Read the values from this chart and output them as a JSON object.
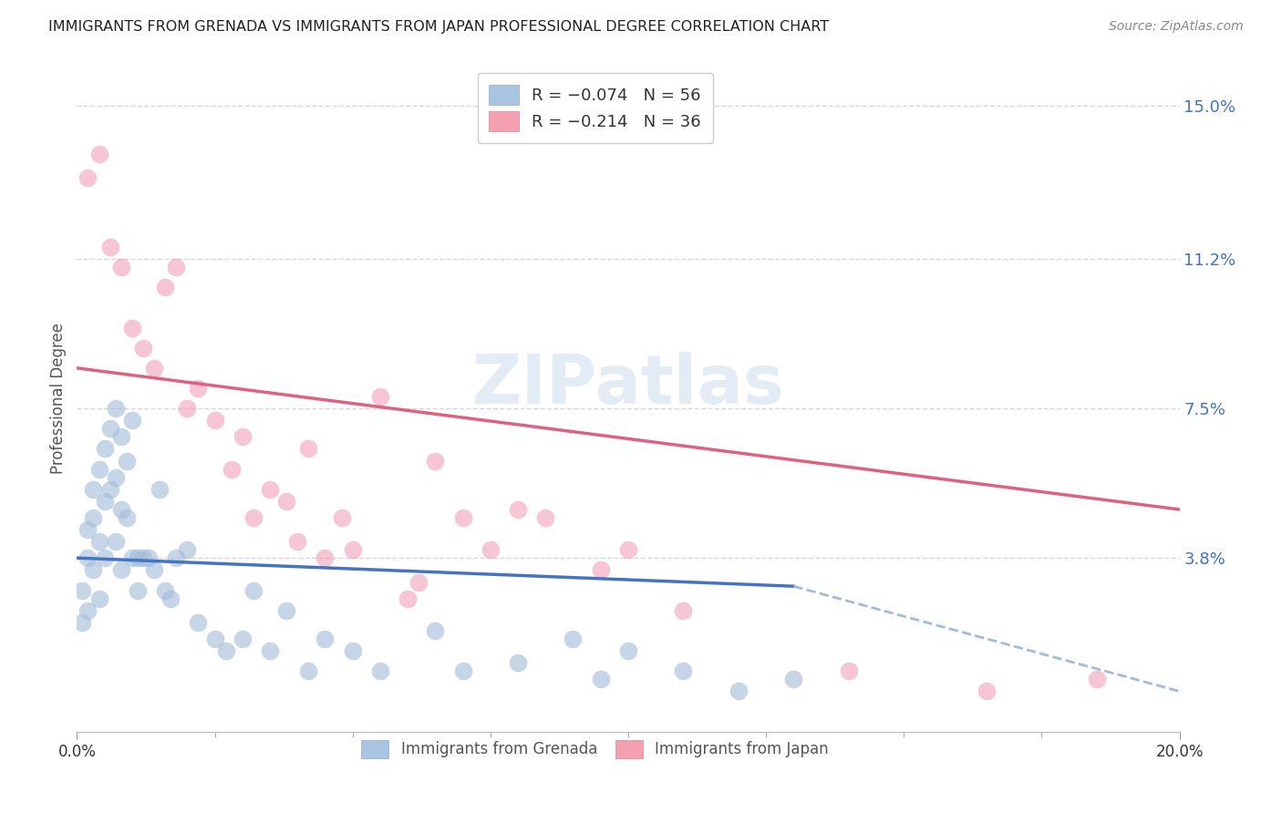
{
  "title": "IMMIGRANTS FROM GRENADA VS IMMIGRANTS FROM JAPAN PROFESSIONAL DEGREE CORRELATION CHART",
  "source": "Source: ZipAtlas.com",
  "ylabel": "Professional Degree",
  "watermark": "ZIPatlas",
  "y_tick_labels": [
    "15.0%",
    "11.2%",
    "7.5%",
    "3.8%"
  ],
  "y_tick_vals": [
    0.15,
    0.112,
    0.075,
    0.038
  ],
  "xlim": [
    0.0,
    0.2
  ],
  "ylim": [
    -0.005,
    0.16
  ],
  "legend_color1": "#a8c4e0",
  "legend_color2": "#f4a0b0",
  "dot_color_grenada": "#a0bcd8",
  "dot_color_japan": "#f0a0b8",
  "line_color_grenada": "#4472c4",
  "line_color_grenada_dash": "#a0bcd8",
  "line_color_japan": "#e06080",
  "grid_color": "#cccccc",
  "background_color": "#ffffff",
  "scatter_grenada_x": [
    0.001,
    0.001,
    0.002,
    0.002,
    0.002,
    0.003,
    0.003,
    0.003,
    0.004,
    0.004,
    0.004,
    0.005,
    0.005,
    0.005,
    0.006,
    0.006,
    0.007,
    0.007,
    0.007,
    0.008,
    0.008,
    0.008,
    0.009,
    0.009,
    0.01,
    0.01,
    0.011,
    0.011,
    0.012,
    0.013,
    0.014,
    0.015,
    0.016,
    0.017,
    0.018,
    0.02,
    0.022,
    0.025,
    0.027,
    0.03,
    0.032,
    0.035,
    0.038,
    0.042,
    0.045,
    0.05,
    0.055,
    0.065,
    0.07,
    0.08,
    0.09,
    0.095,
    0.1,
    0.11,
    0.12,
    0.13
  ],
  "scatter_grenada_y": [
    0.03,
    0.022,
    0.045,
    0.038,
    0.025,
    0.055,
    0.048,
    0.035,
    0.06,
    0.042,
    0.028,
    0.065,
    0.052,
    0.038,
    0.07,
    0.055,
    0.075,
    0.058,
    0.042,
    0.068,
    0.05,
    0.035,
    0.062,
    0.048,
    0.072,
    0.038,
    0.038,
    0.03,
    0.038,
    0.038,
    0.035,
    0.055,
    0.03,
    0.028,
    0.038,
    0.04,
    0.022,
    0.018,
    0.015,
    0.018,
    0.03,
    0.015,
    0.025,
    0.01,
    0.018,
    0.015,
    0.01,
    0.02,
    0.01,
    0.012,
    0.018,
    0.008,
    0.015,
    0.01,
    0.005,
    0.008
  ],
  "scatter_japan_x": [
    0.002,
    0.004,
    0.006,
    0.008,
    0.01,
    0.012,
    0.014,
    0.016,
    0.018,
    0.02,
    0.022,
    0.025,
    0.028,
    0.03,
    0.032,
    0.035,
    0.038,
    0.04,
    0.042,
    0.045,
    0.048,
    0.05,
    0.055,
    0.06,
    0.062,
    0.065,
    0.07,
    0.075,
    0.08,
    0.085,
    0.095,
    0.1,
    0.11,
    0.14,
    0.165,
    0.185
  ],
  "scatter_japan_y": [
    0.132,
    0.138,
    0.115,
    0.11,
    0.095,
    0.09,
    0.085,
    0.105,
    0.11,
    0.075,
    0.08,
    0.072,
    0.06,
    0.068,
    0.048,
    0.055,
    0.052,
    0.042,
    0.065,
    0.038,
    0.048,
    0.04,
    0.078,
    0.028,
    0.032,
    0.062,
    0.048,
    0.04,
    0.05,
    0.048,
    0.035,
    0.04,
    0.025,
    0.01,
    0.005,
    0.008
  ],
  "line_japan_x0": 0.0,
  "line_japan_y0": 0.085,
  "line_japan_x1": 0.2,
  "line_japan_y1": 0.05,
  "line_grenada_x0": 0.0,
  "line_grenada_y0": 0.038,
  "line_grenada_x1": 0.13,
  "line_grenada_y1": 0.031,
  "line_grenada_dash_x0": 0.13,
  "line_grenada_dash_y0": 0.031,
  "line_grenada_dash_x1": 0.2,
  "line_grenada_dash_y1": 0.005
}
